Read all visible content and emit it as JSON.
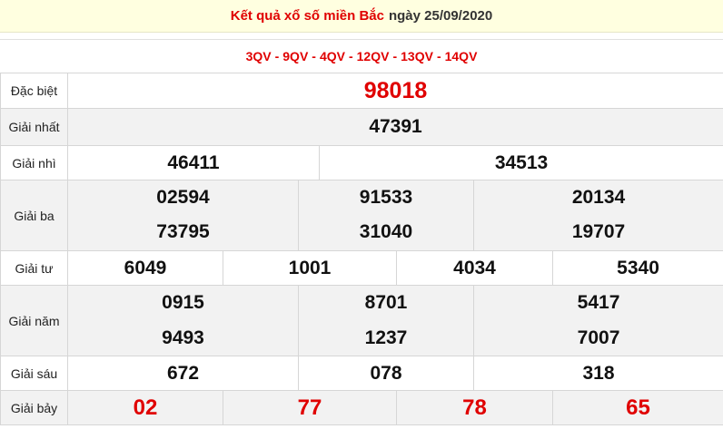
{
  "header": {
    "title_red": "Kết quả xổ số miền Bắc",
    "title_date": "ngày 25/09/2020"
  },
  "codes": [
    "3QV",
    "9QV",
    "4QV",
    "12QV",
    "13QV",
    "14QV"
  ],
  "prizes": {
    "special": {
      "label": "Đặc biệt",
      "numbers": [
        "98018"
      ]
    },
    "first": {
      "label": "Giải nhất",
      "numbers": [
        "47391"
      ]
    },
    "second": {
      "label": "Giải nhì",
      "numbers": [
        "46411",
        "34513"
      ]
    },
    "third": {
      "label": "Giải ba",
      "numbers": [
        "02594",
        "91533",
        "20134",
        "73795",
        "31040",
        "19707"
      ]
    },
    "fourth": {
      "label": "Giải tư",
      "numbers": [
        "6049",
        "1001",
        "4034",
        "5340"
      ]
    },
    "fifth": {
      "label": "Giải năm",
      "numbers": [
        "0915",
        "8701",
        "5417",
        "9493",
        "1237",
        "7007"
      ]
    },
    "sixth": {
      "label": "Giải sáu",
      "numbers": [
        "672",
        "078",
        "318"
      ]
    },
    "seventh": {
      "label": "Giải bảy",
      "numbers": [
        "02",
        "77",
        "78",
        "65"
      ]
    }
  },
  "colors": {
    "accent_red": "#e00000",
    "header_bg": "#ffffe0",
    "row_alt_bg": "#f2f2f2"
  }
}
